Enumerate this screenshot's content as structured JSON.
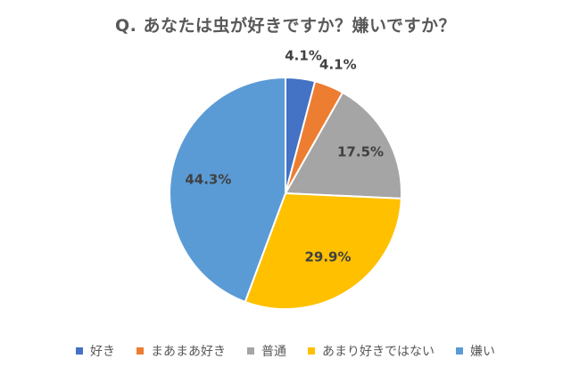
{
  "chart_data": {
    "type": "pie",
    "title": "Q. あなたは虫が好きですか？嫌いですか？",
    "categories": [
      "好き",
      "まあまあ好き",
      "普通",
      "あまり好きではない",
      "嫌い"
    ],
    "values": [
      4.1,
      4.1,
      17.5,
      29.9,
      44.3
    ],
    "data_labels": [
      "4.1%",
      "4.1%",
      "17.5%",
      "29.9%",
      "44.3%"
    ],
    "colors": [
      "#4472C4",
      "#ED7D31",
      "#A5A5A5",
      "#FFC000",
      "#5B9BD5"
    ],
    "legend_position": "bottom",
    "start_angle": "12 o'clock, clockwise"
  }
}
